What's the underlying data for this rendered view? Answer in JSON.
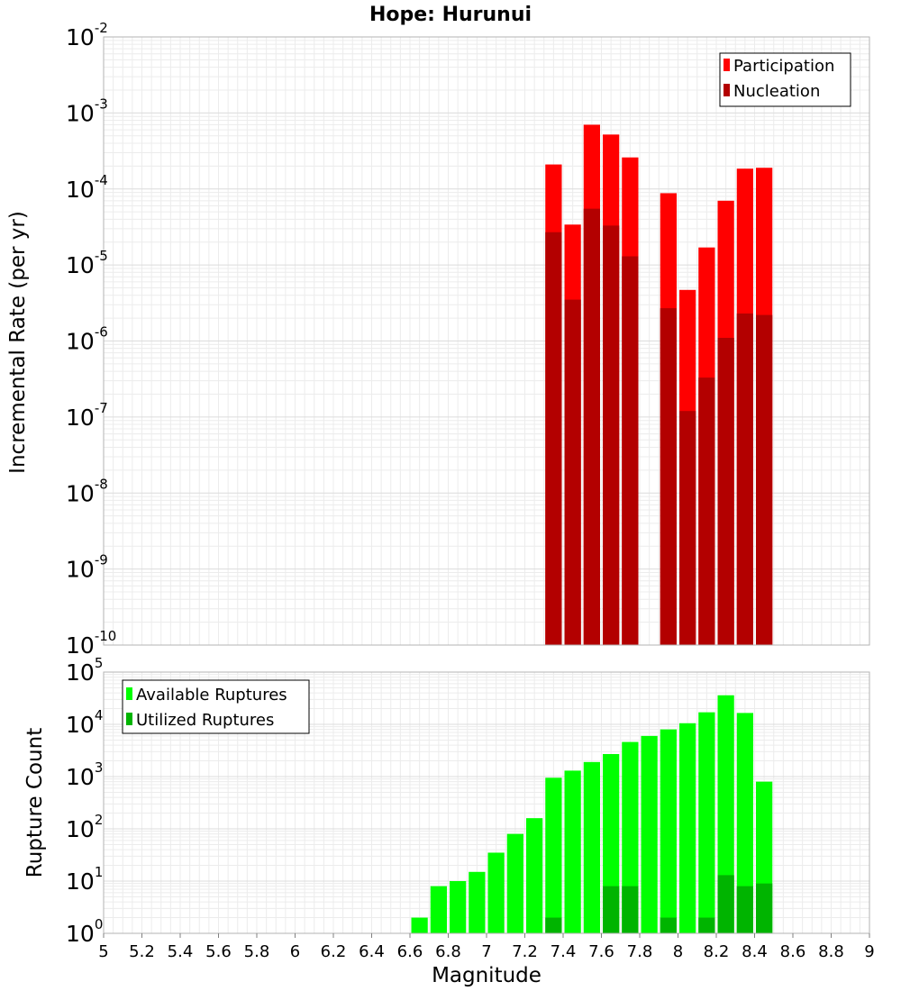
{
  "chart_data": [
    {
      "type": "bar",
      "title": "Hope: Hurunui",
      "ylabel": "Incremental Rate (per yr)",
      "yscale": "log",
      "ylim_exp": [
        -10,
        -2
      ],
      "y_tick_base": "10",
      "y_tick_exponents": [
        "-10",
        "-9",
        "-8",
        "-7",
        "-6",
        "-5",
        "-4",
        "-3",
        "-2"
      ],
      "xlim": [
        5,
        9
      ],
      "bar_width": 0.1,
      "grid": true,
      "legend_position": "top-right",
      "series": [
        {
          "name": "Participation",
          "color": "#ff0000",
          "x": [
            7.35,
            7.45,
            7.55,
            7.65,
            7.75,
            7.95,
            8.05,
            8.15,
            8.25,
            8.35,
            8.45
          ],
          "values": [
            0.00021,
            3.4e-05,
            0.0007,
            0.00052,
            0.00026,
            8.8e-05,
            4.7e-06,
            1.7e-05,
            7e-05,
            0.000185,
            0.00019
          ]
        },
        {
          "name": "Nucleation",
          "color": "#b30000",
          "x": [
            7.35,
            7.45,
            7.55,
            7.65,
            7.75,
            7.95,
            8.05,
            8.15,
            8.25,
            8.35,
            8.45
          ],
          "values": [
            2.7e-05,
            3.5e-06,
            5.5e-05,
            3.3e-05,
            1.3e-05,
            2.7e-06,
            1.2e-07,
            3.3e-07,
            1.1e-06,
            2.3e-06,
            2.2e-06
          ]
        }
      ]
    },
    {
      "type": "bar",
      "xlabel": "Magnitude",
      "ylabel": "Rupture Count",
      "yscale": "log",
      "ylim_exp": [
        0,
        5
      ],
      "y_tick_base": "10",
      "y_tick_exponents": [
        "0",
        "1",
        "2",
        "3",
        "4",
        "5"
      ],
      "xlim": [
        5,
        9
      ],
      "x_ticks": [
        "5",
        "5.2",
        "5.4",
        "5.6",
        "5.8",
        "6",
        "6.2",
        "6.4",
        "6.6",
        "6.8",
        "7",
        "7.2",
        "7.4",
        "7.6",
        "7.8",
        "8",
        "8.2",
        "8.4",
        "8.6",
        "8.8",
        "9"
      ],
      "bar_width": 0.1,
      "grid": true,
      "legend_position": "top-left",
      "series": [
        {
          "name": "Available Ruptures",
          "color": "#00ff00",
          "x": [
            6.45,
            6.65,
            6.75,
            6.85,
            6.95,
            7.05,
            7.15,
            7.25,
            7.35,
            7.45,
            7.55,
            7.65,
            7.75,
            7.85,
            7.95,
            8.05,
            8.15,
            8.25,
            8.35,
            8.45
          ],
          "values": [
            1,
            2,
            8,
            10,
            15,
            35,
            80,
            160,
            950,
            1300,
            1900,
            2700,
            4600,
            6000,
            8000,
            10500,
            17000,
            36000,
            16500,
            800
          ]
        },
        {
          "name": "Utilized Ruptures",
          "color": "#00b400",
          "x": [
            7.35,
            7.45,
            7.55,
            7.65,
            7.75,
            7.95,
            8.05,
            8.15,
            8.25,
            8.35,
            8.45
          ],
          "values": [
            2,
            1,
            1,
            8,
            8,
            2,
            1,
            2,
            13,
            8,
            9
          ]
        }
      ]
    }
  ]
}
